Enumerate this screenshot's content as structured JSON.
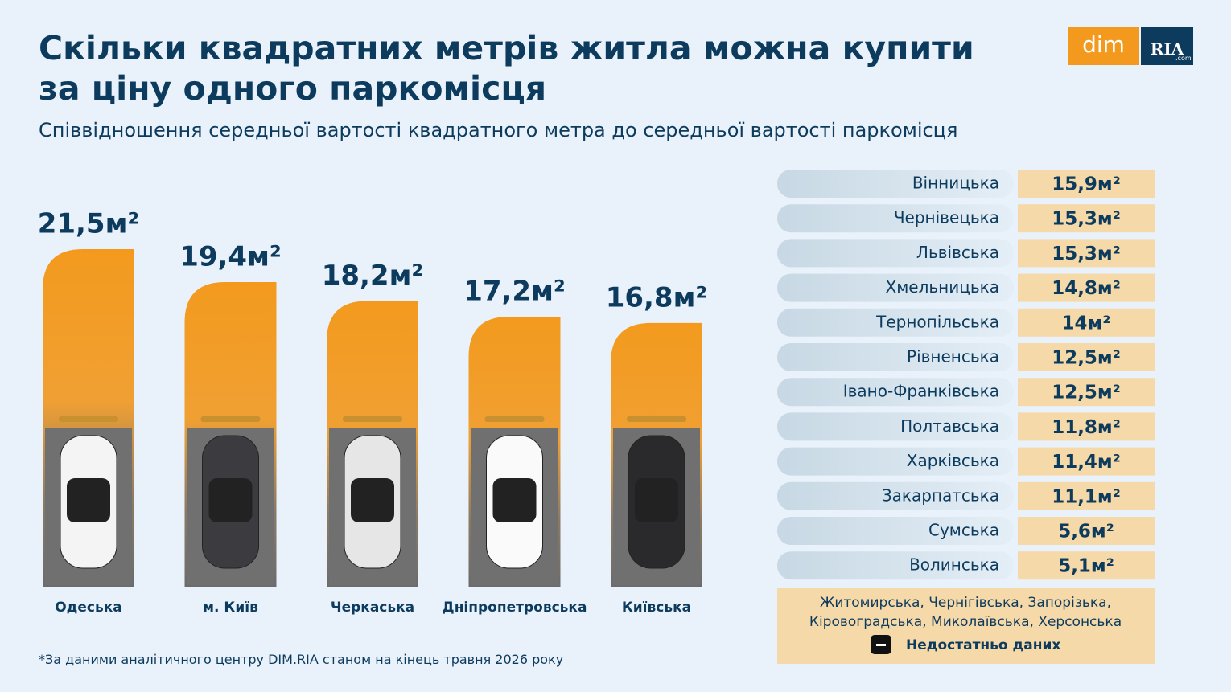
{
  "header": {
    "title_line1": "Скільки квадратних метрів житла можна купити",
    "title_line2": "за ціну одного паркомісця",
    "subtitle": "Співвідношення середньої вартості квадратного метра до середньої вартості паркомісця"
  },
  "logo": {
    "left": "dim",
    "right": "RIA",
    "suffix": ".com"
  },
  "chart_data": {
    "type": "bar",
    "categories": [
      "Одеська",
      "м. Київ",
      "Черкаська",
      "Дніпропетровська",
      "Київська"
    ],
    "values": [
      21.5,
      19.4,
      18.2,
      17.2,
      16.8
    ],
    "value_labels": [
      "21,5м²",
      "19,4м²",
      "18,2м²",
      "17,2м²",
      "16,8м²"
    ],
    "color": "#f39a1e"
  },
  "table": {
    "rows": [
      [
        "Вінницька",
        "15,9м²"
      ],
      [
        "Чернівецька",
        "15,3м²"
      ],
      [
        "Львівська",
        "15,3м²"
      ],
      [
        "Хмельницька",
        "14,8м²"
      ],
      [
        "Тернопільська",
        "14м²"
      ],
      [
        "Рівненська",
        "12,5м²"
      ],
      [
        "Івано-Франківська",
        "12,5м²"
      ],
      [
        "Полтавська",
        "11,8м²"
      ],
      [
        "Харківська",
        "11,4м²"
      ],
      [
        "Закарпатська",
        "11,1м²"
      ],
      [
        "Сумська",
        "5,6м²"
      ],
      [
        "Волинська",
        "5,1м²"
      ]
    ],
    "no_data_line1": "Житомирська, Чернігівська, Запорізька,",
    "no_data_line2": "Кіровоградська, Миколаївська, Херсонська",
    "no_data_label": "Недостатньо даних"
  },
  "footnote": "*За даними аналітичного центру DIM.RIA станом на кінець травня 2026 року"
}
